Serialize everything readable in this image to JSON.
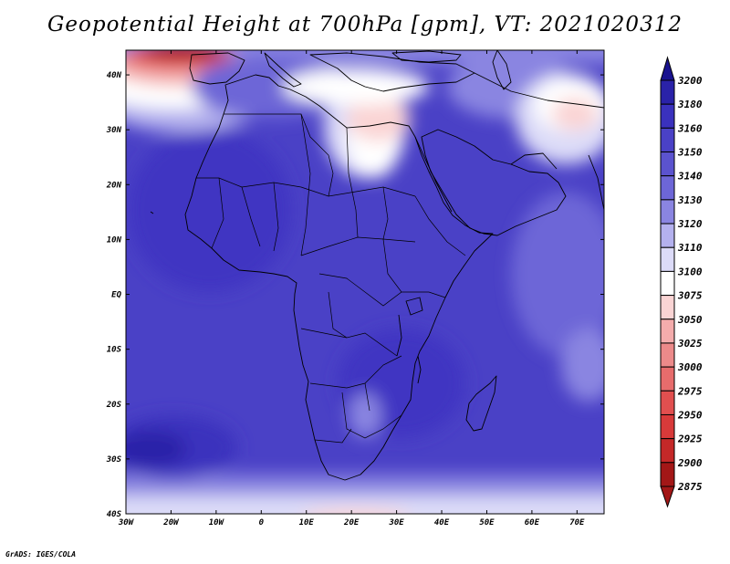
{
  "title": "Geopotential Height at 700hPa [gpm], VT: 2021020312",
  "credit": "GrADS: IGES/COLA",
  "axes": {
    "lon_labels": [
      "30W",
      "20W",
      "10W",
      "0",
      "10E",
      "20E",
      "30E",
      "40E",
      "50E",
      "60E",
      "70E"
    ],
    "lon_values": [
      -30,
      -20,
      -10,
      0,
      10,
      20,
      30,
      40,
      50,
      60,
      70
    ],
    "lat_labels": [
      "40N",
      "30N",
      "20N",
      "10N",
      "EQ",
      "10S",
      "20S",
      "30S",
      "40S"
    ],
    "lat_values": [
      40,
      30,
      20,
      10,
      0,
      -10,
      -20,
      -30,
      -40
    ],
    "lon_range": [
      -30,
      76
    ],
    "lat_range": [
      -40,
      44.5
    ]
  },
  "colorbar": {
    "levels": [
      "3200",
      "3180",
      "3160",
      "3150",
      "3140",
      "3130",
      "3120",
      "3110",
      "3100",
      "3075",
      "3050",
      "3025",
      "3000",
      "2975",
      "2950",
      "2925",
      "2900",
      "2875"
    ],
    "colors": [
      "#19128f",
      "#2a22a8",
      "#3a31bd",
      "#4a41c6",
      "#5b53cf",
      "#6d66d7",
      "#8a85e1",
      "#b4b1ee",
      "#dcdbf8",
      "#ffffff",
      "#fad4d4",
      "#f4acac",
      "#ec8a8a",
      "#e76c6c",
      "#e14f4f",
      "#d83a3a",
      "#c42828",
      "#a31717"
    ]
  },
  "chart_data": {
    "type": "heatmap",
    "title": "Geopotential Height at 700hPa [gpm], VT: 2021020312",
    "xlabel": "",
    "ylabel": "",
    "xlim": [
      -30,
      76
    ],
    "ylim": [
      -40,
      44.5
    ],
    "colorbar_levels": [
      3200,
      3180,
      3160,
      3150,
      3140,
      3130,
      3120,
      3110,
      3100,
      3075,
      3050,
      3025,
      3000,
      2975,
      2950,
      2925,
      2900,
      2875
    ],
    "features": [
      {
        "region": "Northwest Atlantic / Iberia (lon -30 to -10, lat 40 to 44)",
        "value_range": [
          2900,
          2975
        ]
      },
      {
        "region": "Mediterranean ridge/trough (lon 20 to 30, lat 20 to 35)",
        "value_range": [
          3050,
          3100
        ]
      },
      {
        "region": "Middle East (lon 55 to 70, lat 25 to 38)",
        "value_range": [
          3050,
          3100
        ]
      },
      {
        "region": "Tropical Africa and Atlantic",
        "value_range": [
          3130,
          3160
        ]
      },
      {
        "region": "South Atlantic high (lon -30 to -20, lat -25 to -35)",
        "value_range": [
          3160,
          3180
        ]
      },
      {
        "region": "Southern Ocean (lat -38 to -40)",
        "value_range": [
          3050,
          3100
        ]
      }
    ]
  }
}
